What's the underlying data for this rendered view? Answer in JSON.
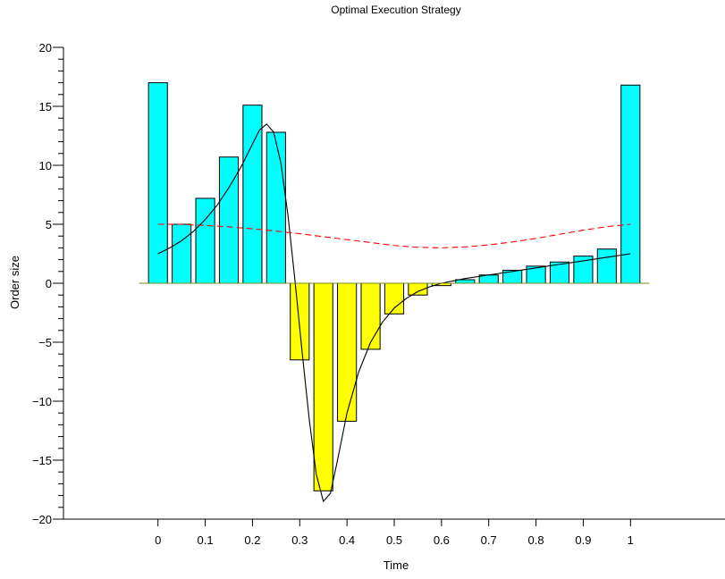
{
  "chart_data": {
    "type": "bar",
    "title": "Optimal Execution Strategy",
    "xlabel": "Time",
    "ylabel": "Order size",
    "xlim": [
      -0.2,
      1.2
    ],
    "ylim": [
      -20,
      20
    ],
    "x_ticks": [
      0,
      0.1,
      0.2,
      0.3,
      0.4,
      0.5,
      0.6,
      0.7,
      0.8,
      0.9,
      1
    ],
    "x_tick_labels": [
      "0",
      "0.1",
      "0.2",
      "0.3",
      "0.4",
      "0.5",
      "0.6",
      "0.7",
      "0.8",
      "0.9",
      "1"
    ],
    "y_ticks": [
      -20,
      -15,
      -10,
      -5,
      0,
      5,
      10,
      15,
      20
    ],
    "y_tick_labels": [
      "−20",
      "−15",
      "−10",
      "−5",
      "0",
      "5",
      "10",
      "15",
      "20"
    ],
    "grid": false,
    "bars": {
      "x": [
        0,
        0.05,
        0.1,
        0.15,
        0.2,
        0.25,
        0.3,
        0.35,
        0.4,
        0.45,
        0.5,
        0.55,
        0.6,
        0.65,
        0.7,
        0.75,
        0.8,
        0.85,
        0.9,
        0.95,
        1
      ],
      "values": [
        17.0,
        5.0,
        7.2,
        10.7,
        15.1,
        12.8,
        -6.5,
        -17.6,
        -11.7,
        -5.6,
        -2.6,
        -1.0,
        -0.2,
        0.3,
        0.7,
        1.1,
        1.45,
        1.8,
        2.3,
        2.9,
        16.8
      ],
      "width": 0.04,
      "positive_color": "#00FFFF",
      "negative_color": "#FFFF00",
      "edge_color": "#000000"
    },
    "series": [
      {
        "style": "solid",
        "color": "#000000",
        "x": [
          0,
          0.025,
          0.05,
          0.075,
          0.1,
          0.125,
          0.15,
          0.175,
          0.2,
          0.215,
          0.23,
          0.245,
          0.26,
          0.275,
          0.29,
          0.305,
          0.32,
          0.335,
          0.35,
          0.365,
          0.38,
          0.4,
          0.425,
          0.45,
          0.475,
          0.5,
          0.525,
          0.55,
          0.575,
          0.6,
          0.65,
          0.7,
          0.75,
          0.8,
          0.85,
          0.9,
          0.95,
          1
        ],
        "y": [
          2.5,
          3.0,
          3.6,
          4.4,
          5.4,
          6.6,
          8.1,
          9.8,
          11.8,
          13.0,
          13.5,
          12.8,
          10.2,
          5.8,
          0.2,
          -5.8,
          -11.5,
          -16.2,
          -18.5,
          -17.8,
          -15.0,
          -11.0,
          -7.5,
          -5.0,
          -3.3,
          -2.1,
          -1.3,
          -0.7,
          -0.3,
          0.0,
          0.4,
          0.7,
          1.0,
          1.3,
          1.6,
          1.9,
          2.2,
          2.5
        ]
      },
      {
        "style": "dashed",
        "color": "#FF0000",
        "x": [
          0,
          0.05,
          0.1,
          0.15,
          0.2,
          0.25,
          0.3,
          0.35,
          0.4,
          0.45,
          0.5,
          0.55,
          0.6,
          0.65,
          0.7,
          0.75,
          0.8,
          0.85,
          0.9,
          0.95,
          1
        ],
        "y": [
          5.0,
          4.99,
          4.9,
          4.78,
          4.62,
          4.42,
          4.2,
          3.95,
          3.7,
          3.45,
          3.2,
          3.05,
          3.0,
          3.08,
          3.25,
          3.5,
          3.8,
          4.15,
          4.5,
          4.8,
          5.0
        ]
      },
      {
        "style": "solid",
        "color": "#7a8a2a",
        "x": [
          -0.04,
          1.04
        ],
        "y": [
          0,
          0
        ]
      }
    ]
  }
}
